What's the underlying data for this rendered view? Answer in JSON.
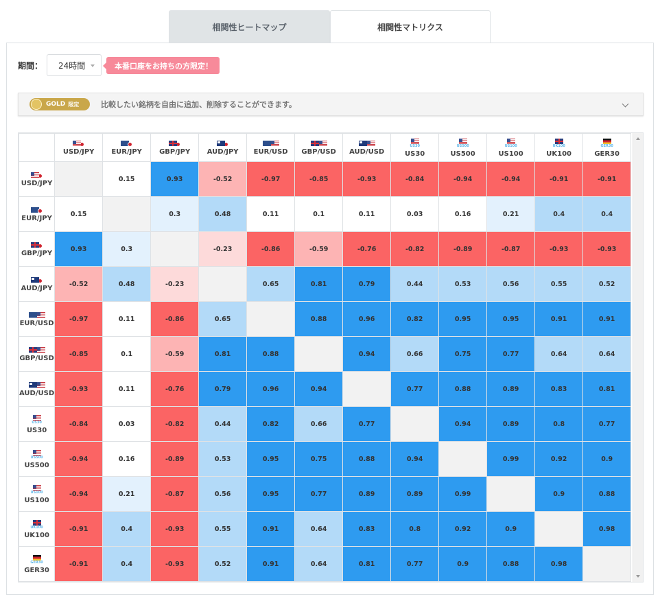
{
  "tabs": [
    {
      "label": "相関性ヒートマップ",
      "active": false
    },
    {
      "label": "相関性マトリクス",
      "active": true
    }
  ],
  "period": {
    "label": "期間：",
    "value": "24時間"
  },
  "promo": "本番口座をお持ちの方限定！",
  "gold": {
    "badge": "GOLD",
    "badge_sub": "限定",
    "text": "比較したい銘柄を自由に追加、削除することができます。"
  },
  "colors": {
    "strong_positive": "#2e9bf0",
    "mild_positive": "#b3daf8",
    "weak_positive": "#e3f1fd",
    "strong_negative": "#fb6464",
    "mild_negative": "#fdb4b4",
    "weak_negative": "#fddada",
    "diagonal": "#f2f2f2"
  },
  "symbols": [
    {
      "name": "USD/JPY",
      "flags": [
        "us",
        "jp"
      ],
      "tag": ""
    },
    {
      "name": "EUR/JPY",
      "flags": [
        "eu",
        "jp"
      ],
      "tag": ""
    },
    {
      "name": "GBP/JPY",
      "flags": [
        "gb",
        "jp"
      ],
      "tag": ""
    },
    {
      "name": "AUD/JPY",
      "flags": [
        "au",
        "jp"
      ],
      "tag": ""
    },
    {
      "name": "EUR/USD",
      "flags": [
        "eu",
        "us"
      ],
      "tag": ""
    },
    {
      "name": "GBP/USD",
      "flags": [
        "gb",
        "us"
      ],
      "tag": ""
    },
    {
      "name": "AUD/USD",
      "flags": [
        "au",
        "us"
      ],
      "tag": ""
    },
    {
      "name": "US30",
      "flags": [
        "us"
      ],
      "tag": "US30"
    },
    {
      "name": "US500",
      "flags": [
        "us"
      ],
      "tag": "US500"
    },
    {
      "name": "US100",
      "flags": [
        "us"
      ],
      "tag": "US100"
    },
    {
      "name": "UK100",
      "flags": [
        "gb"
      ],
      "tag": "UK100"
    },
    {
      "name": "GER30",
      "flags": [
        "de"
      ],
      "tag": "GER30"
    }
  ],
  "matrix": [
    [
      null,
      "0.15",
      "0.93",
      "-0.52",
      "-0.97",
      "-0.85",
      "-0.93",
      "-0.84",
      "-0.94",
      "-0.94",
      "-0.91",
      "-0.91"
    ],
    [
      "0.15",
      null,
      "0.3",
      "0.48",
      "0.11",
      "0.1",
      "0.11",
      "0.03",
      "0.16",
      "0.21",
      "0.4",
      "0.4"
    ],
    [
      "0.93",
      "0.3",
      null,
      "-0.23",
      "-0.86",
      "-0.59",
      "-0.76",
      "-0.82",
      "-0.89",
      "-0.87",
      "-0.93",
      "-0.93"
    ],
    [
      "-0.52",
      "0.48",
      "-0.23",
      null,
      "0.65",
      "0.81",
      "0.79",
      "0.44",
      "0.53",
      "0.56",
      "0.55",
      "0.52"
    ],
    [
      "-0.97",
      "0.11",
      "-0.86",
      "0.65",
      null,
      "0.88",
      "0.96",
      "0.82",
      "0.95",
      "0.95",
      "0.91",
      "0.91"
    ],
    [
      "-0.85",
      "0.1",
      "-0.59",
      "0.81",
      "0.88",
      null,
      "0.94",
      "0.66",
      "0.75",
      "0.77",
      "0.64",
      "0.64"
    ],
    [
      "-0.93",
      "0.11",
      "-0.76",
      "0.79",
      "0.96",
      "0.94",
      null,
      "0.77",
      "0.88",
      "0.89",
      "0.83",
      "0.81"
    ],
    [
      "-0.84",
      "0.03",
      "-0.82",
      "0.44",
      "0.82",
      "0.66",
      "0.77",
      null,
      "0.94",
      "0.89",
      "0.8",
      "0.77"
    ],
    [
      "-0.94",
      "0.16",
      "-0.89",
      "0.53",
      "0.95",
      "0.75",
      "0.88",
      "0.94",
      null,
      "0.99",
      "0.92",
      "0.9"
    ],
    [
      "-0.94",
      "0.21",
      "-0.87",
      "0.56",
      "0.95",
      "0.77",
      "0.89",
      "0.89",
      "0.99",
      null,
      "0.9",
      "0.88"
    ],
    [
      "-0.91",
      "0.4",
      "-0.93",
      "0.55",
      "0.91",
      "0.64",
      "0.83",
      "0.8",
      "0.92",
      "0.9",
      null,
      "0.98"
    ],
    [
      "-0.91",
      "0.4",
      "-0.93",
      "0.52",
      "0.91",
      "0.64",
      "0.81",
      "0.77",
      "0.9",
      "0.88",
      "0.98",
      null
    ]
  ]
}
